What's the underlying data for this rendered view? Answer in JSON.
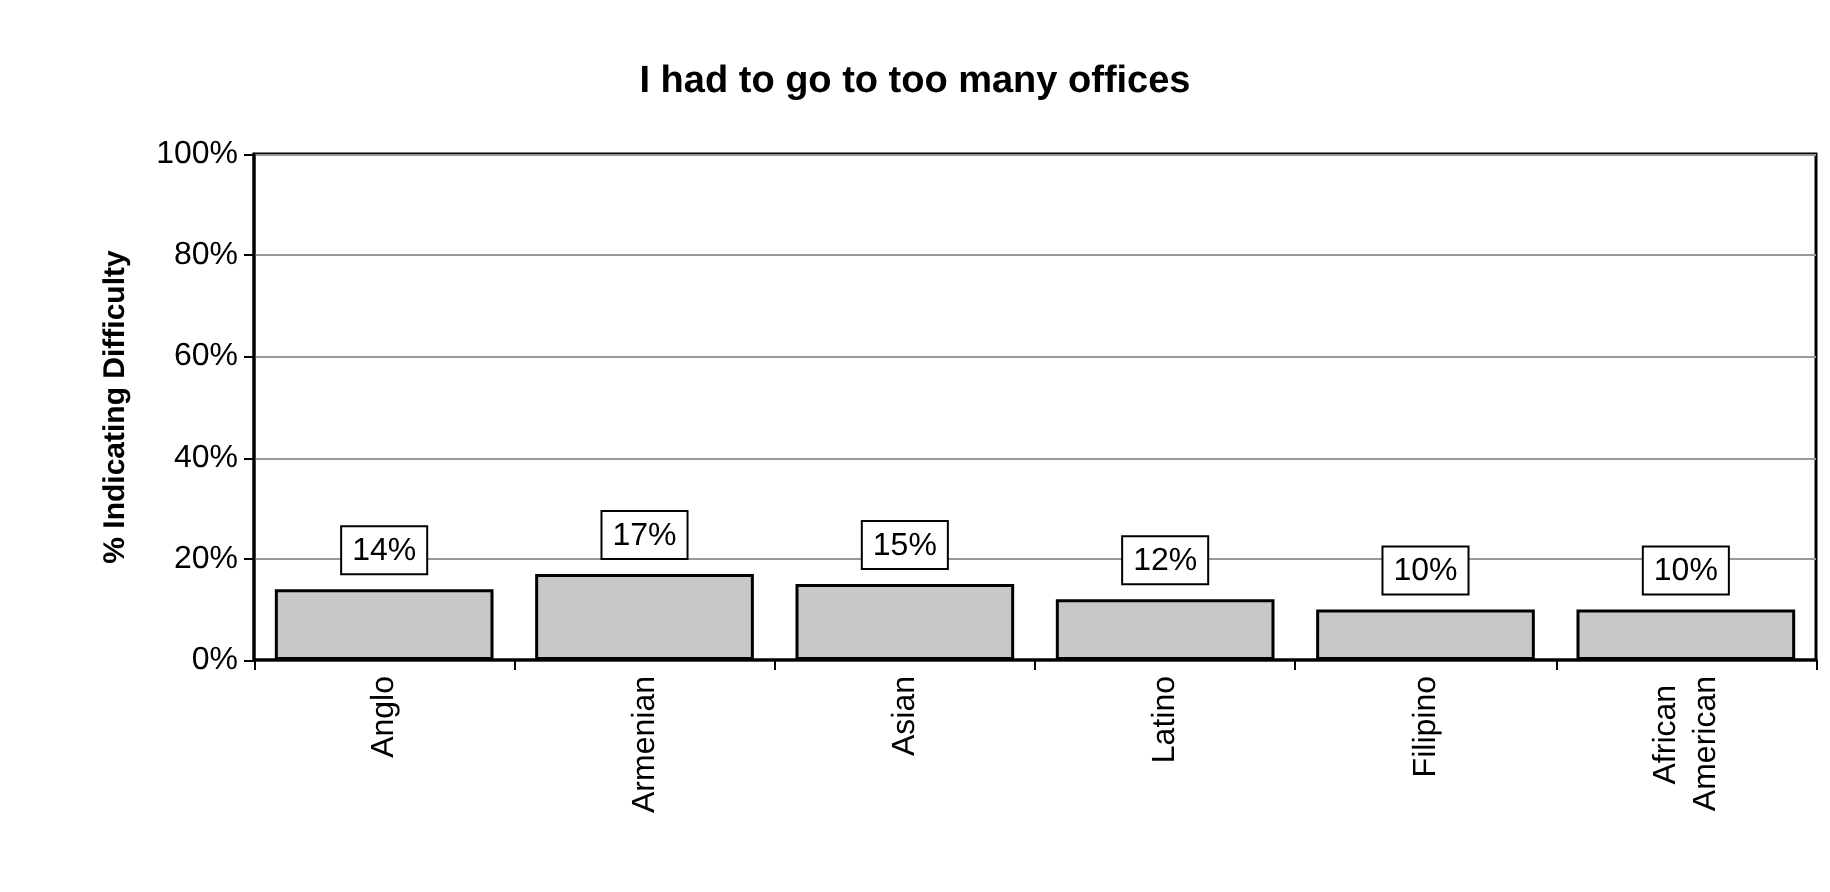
{
  "chart_data": {
    "type": "bar",
    "title": "I had to go to too many offices",
    "ylabel": "% Indicating Difficulty",
    "categories": [
      "Anglo",
      "Armenian",
      "Asian",
      "Latino",
      "Filipino",
      "African American"
    ],
    "values": [
      14,
      17,
      15,
      12,
      10,
      10
    ],
    "color": "#c8c8c8",
    "ylim": [
      0,
      100
    ],
    "yticks": [
      {
        "value": 0,
        "label": "0%"
      },
      {
        "value": 20,
        "label": "20%"
      },
      {
        "value": 40,
        "label": "40%"
      },
      {
        "value": 60,
        "label": "60%"
      },
      {
        "value": 80,
        "label": "80%"
      },
      {
        "value": 100,
        "label": "100%"
      }
    ],
    "value_labels": [
      "14%",
      "17%",
      "15%",
      "12%",
      "10%",
      "10%"
    ],
    "grid": "y"
  }
}
